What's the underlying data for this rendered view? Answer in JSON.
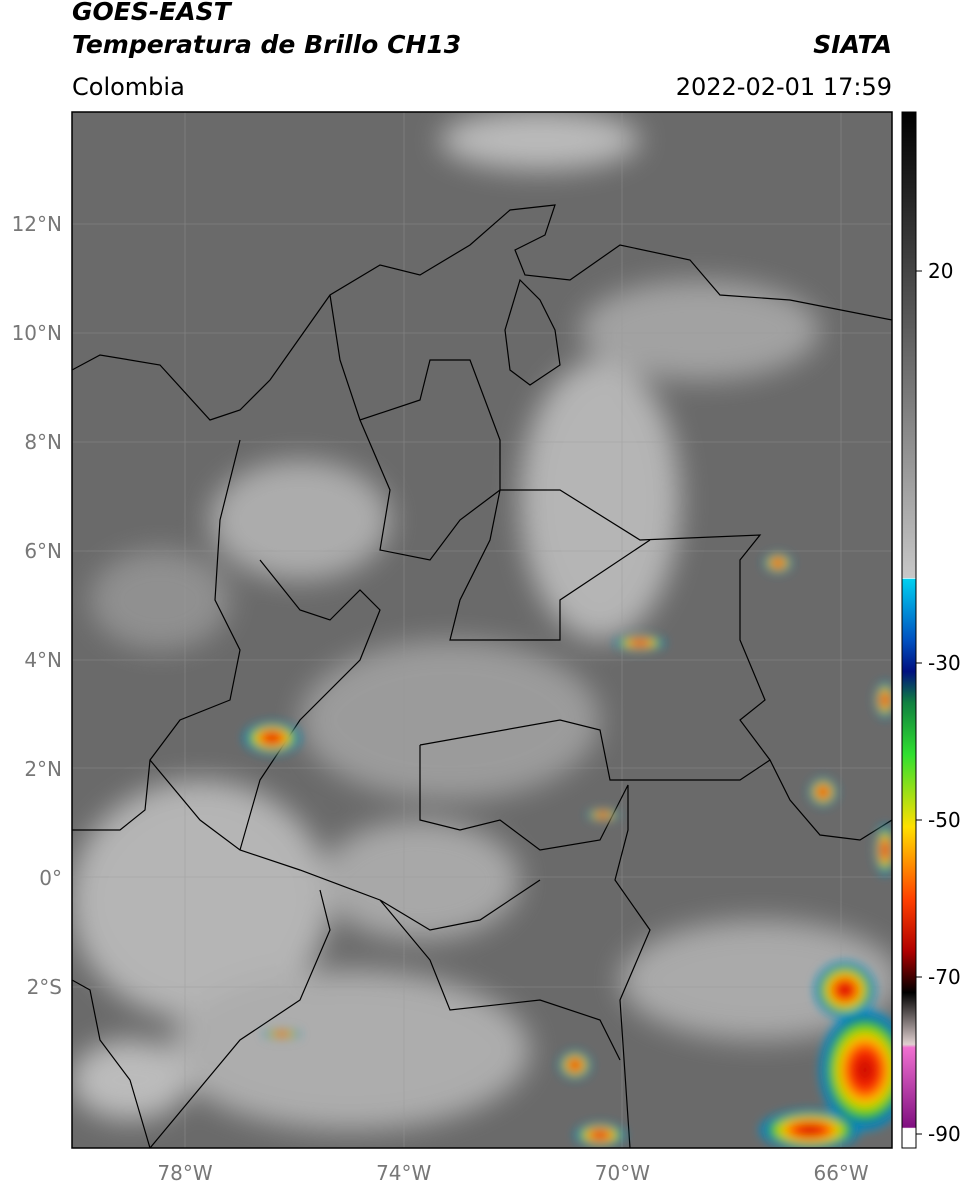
{
  "header": {
    "title": "GOES-EAST",
    "subtitle": "Temperatura de Brillo CH13",
    "region": "Colombia",
    "source": "SIATA",
    "datetime": "2022-02-01 17:59"
  },
  "map": {
    "lat_labels": [
      "12°N",
      "10°N",
      "8°N",
      "6°N",
      "4°N",
      "2°N",
      "0°",
      "2°S"
    ],
    "lon_labels": [
      "78°W",
      "74°W",
      "70°W",
      "66°W"
    ]
  },
  "colorbar": {
    "tick_labels": [
      "20",
      "-30",
      "-50",
      "-70",
      "-90"
    ]
  }
}
